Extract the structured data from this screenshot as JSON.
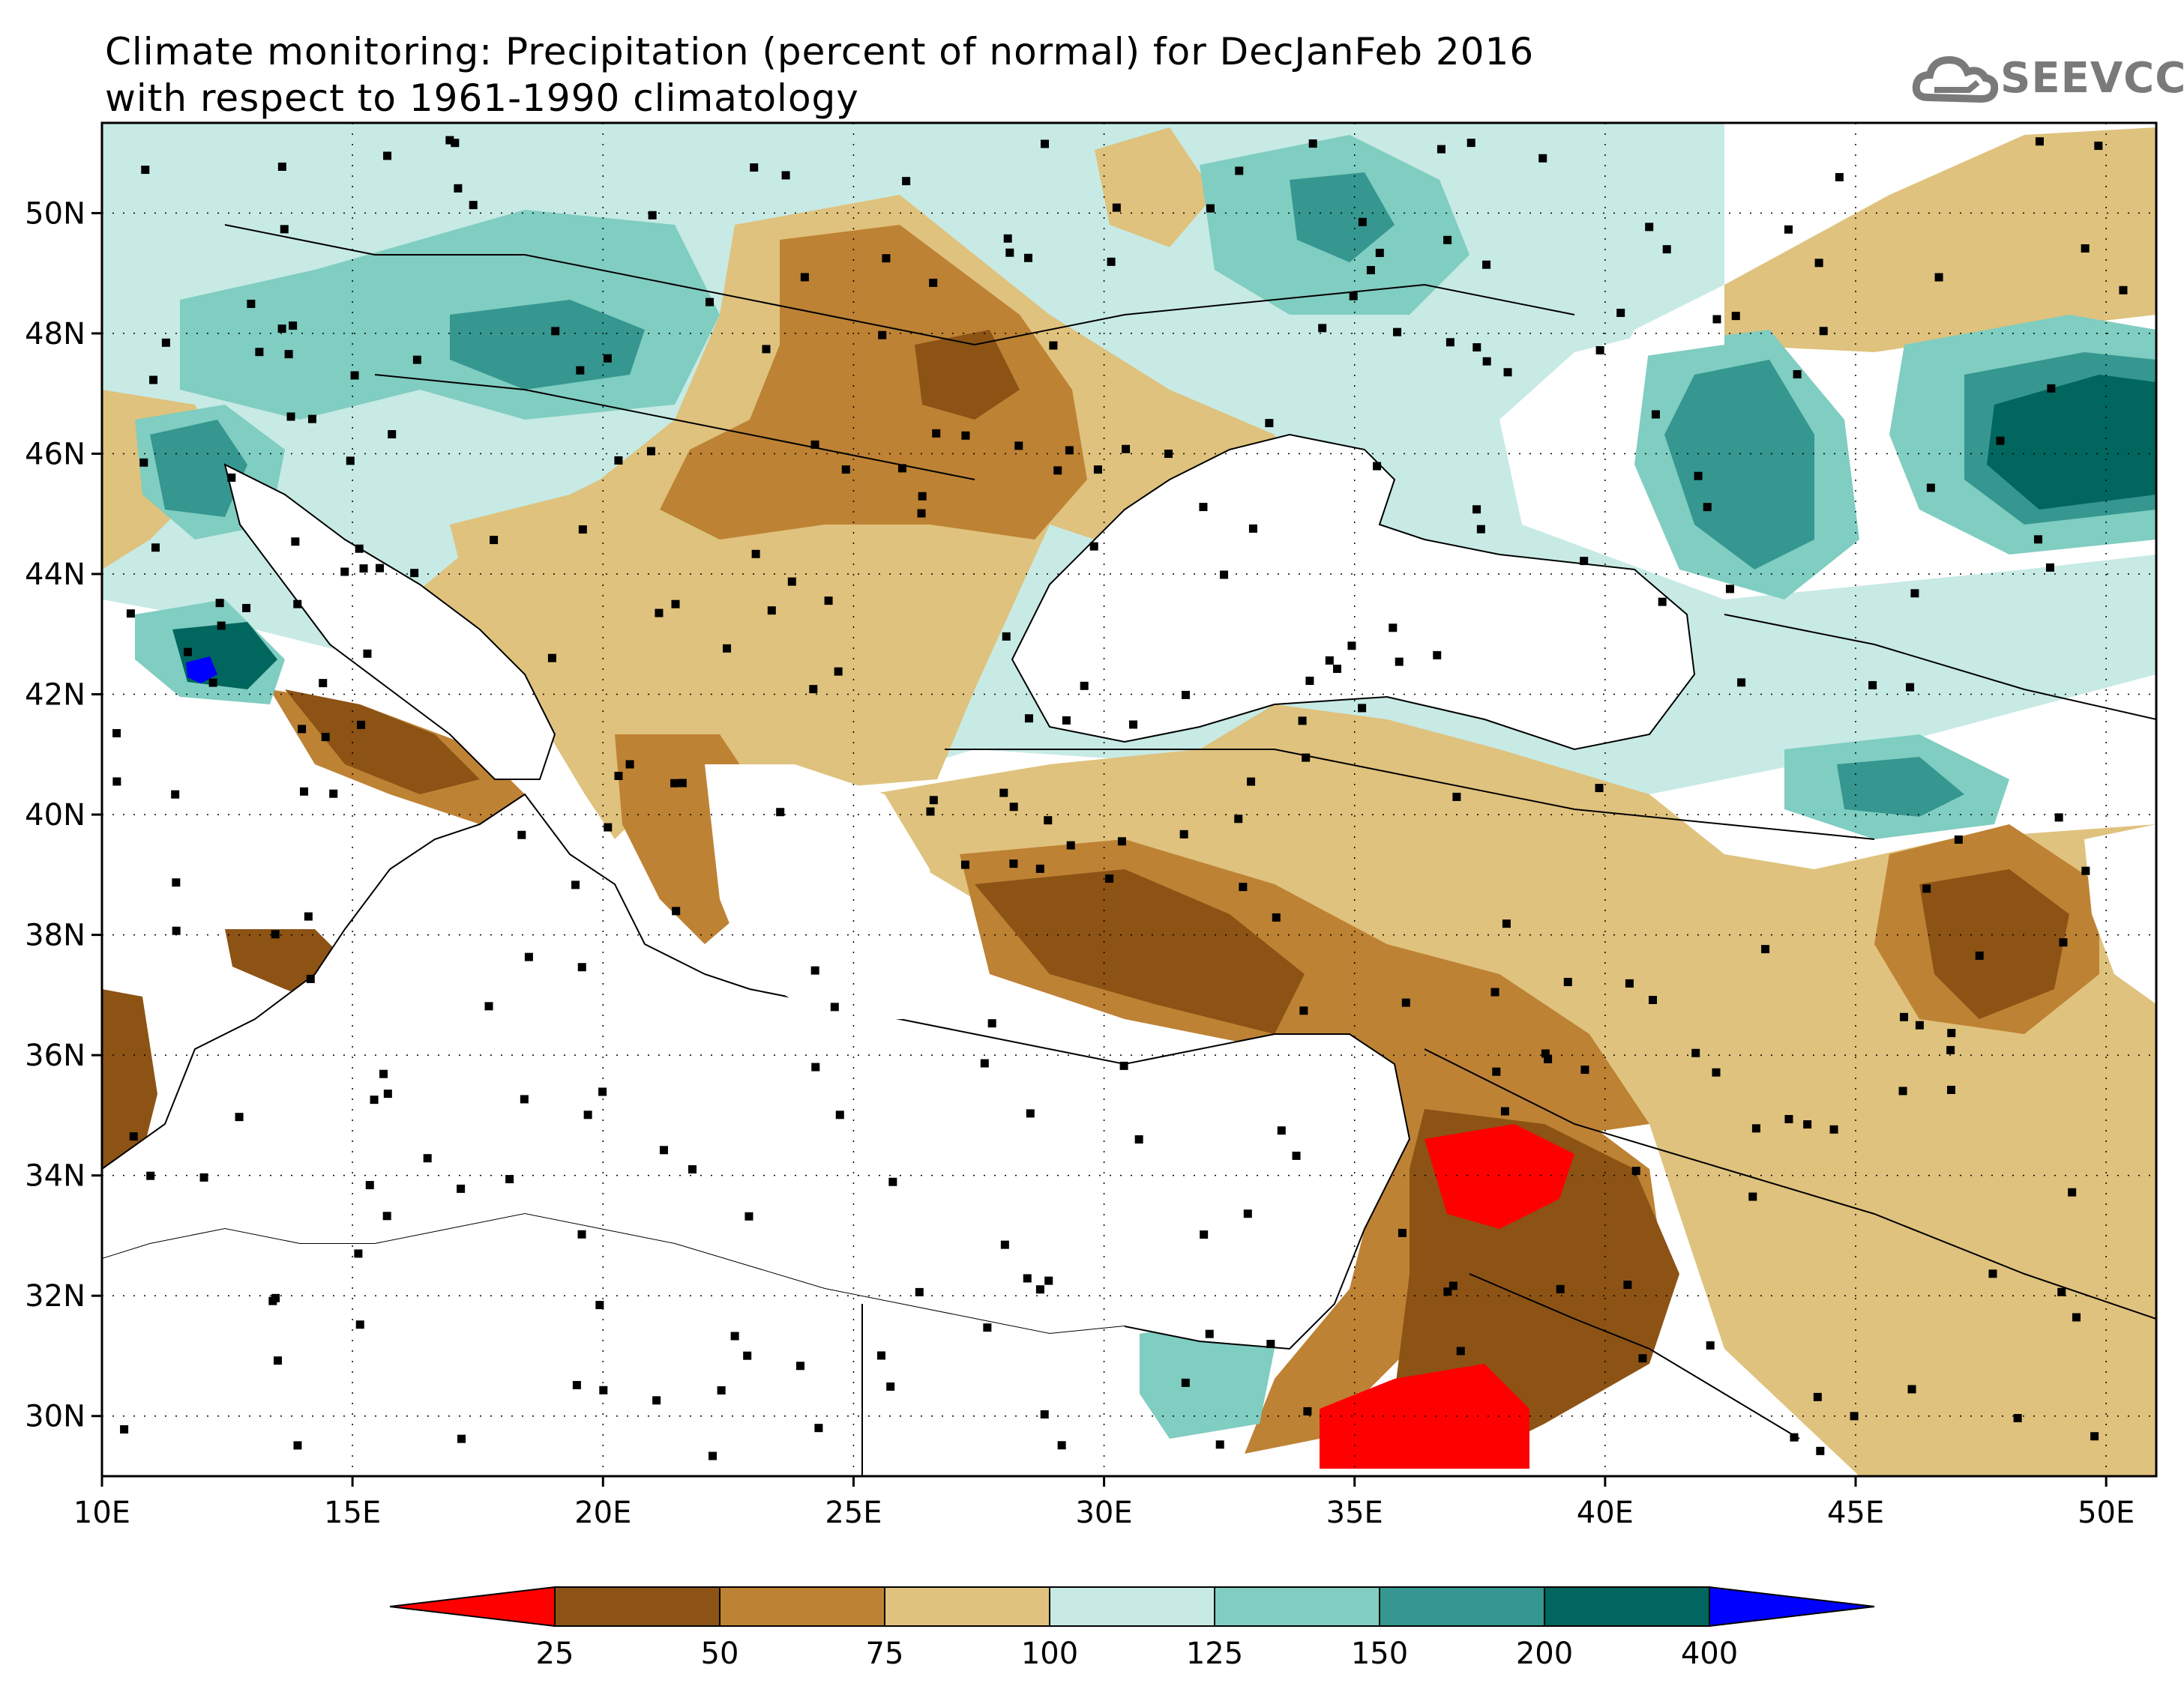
{
  "title": {
    "line1": "Climate monitoring: Precipitation (percent of normal) for DecJanFeb 2016",
    "line2": "with respect to 1961-1990 climatology"
  },
  "logo": {
    "text": "SEEVCCC",
    "icon": "cloud-icon"
  },
  "map": {
    "lon_range": [
      10,
      51
    ],
    "lat_range": [
      29,
      51.5
    ],
    "x_ticks": [
      "10E",
      "15E",
      "20E",
      "25E",
      "30E",
      "35E",
      "40E",
      "45E",
      "50E"
    ],
    "y_ticks": [
      "30N",
      "32N",
      "34N",
      "36N",
      "38N",
      "40N",
      "42N",
      "44N",
      "46N",
      "48N",
      "50N"
    ],
    "grid": true
  },
  "legend": {
    "thresholds": [
      "25",
      "50",
      "75",
      "100",
      "125",
      "150",
      "200",
      "400"
    ],
    "colors": [
      "#ff0000",
      "#8c5315",
      "#be8234",
      "#dfc27d",
      "#c7eae5",
      "#80cdc1",
      "#35978f",
      "#01665e",
      "#0000ff"
    ]
  }
}
